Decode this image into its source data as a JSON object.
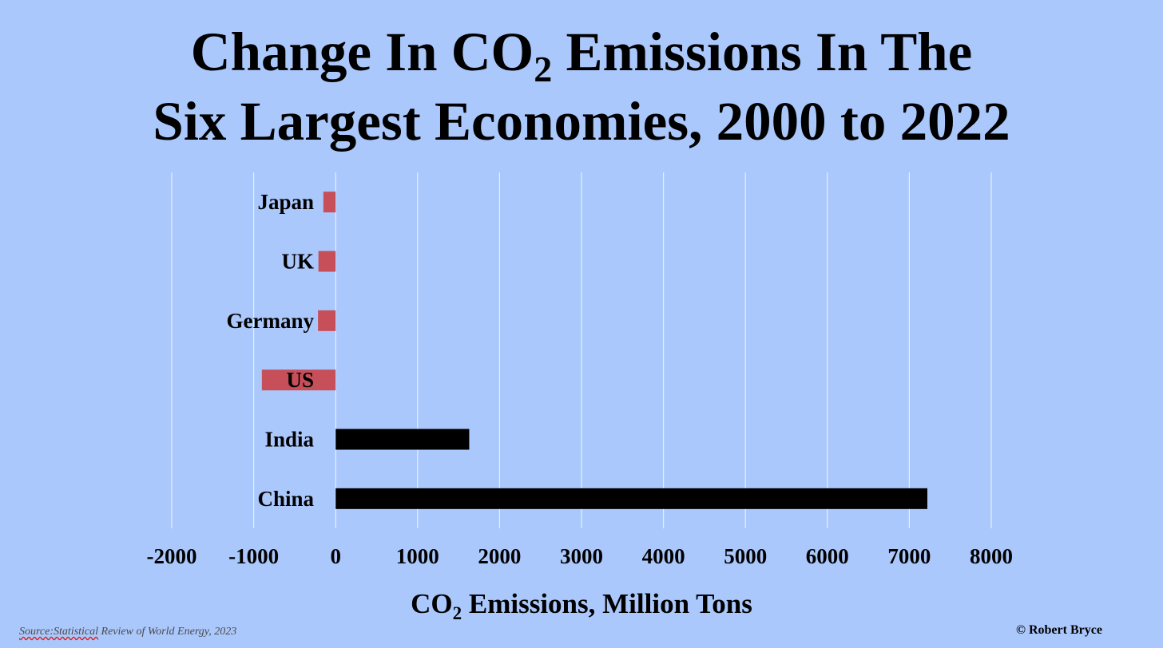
{
  "title": {
    "line1_before": "Change In CO",
    "line1_sub": "2",
    "line1_after": " Emissions In The",
    "line2": "Six Largest Economies, 2000 to 2022"
  },
  "chart_data": {
    "type": "bar",
    "orientation": "horizontal",
    "categories": [
      "Japan",
      "UK",
      "Germany",
      "US",
      "India",
      "China"
    ],
    "values": [
      -150,
      -210,
      -215,
      -900,
      1630,
      7220
    ],
    "xlim": [
      -2000,
      8000
    ],
    "xticks": [
      "-2000",
      "-1000",
      "0",
      "1000",
      "2000",
      "3000",
      "4000",
      "5000",
      "6000",
      "7000",
      "8000"
    ],
    "xtick_values": [
      -2000,
      -1000,
      0,
      1000,
      2000,
      3000,
      4000,
      5000,
      6000,
      7000,
      8000
    ],
    "grid": true,
    "colors": {
      "negative": "#c74f59",
      "positive": "#000000",
      "grid": "#e6eefc"
    }
  },
  "xlabel": {
    "before": "CO",
    "sub": "2",
    "after": " Emissions, Million Tons"
  },
  "source": {
    "underlined": "Source:Statistical",
    "rest": " Review of World Energy, 2023"
  },
  "credit": "© Robert Bryce"
}
